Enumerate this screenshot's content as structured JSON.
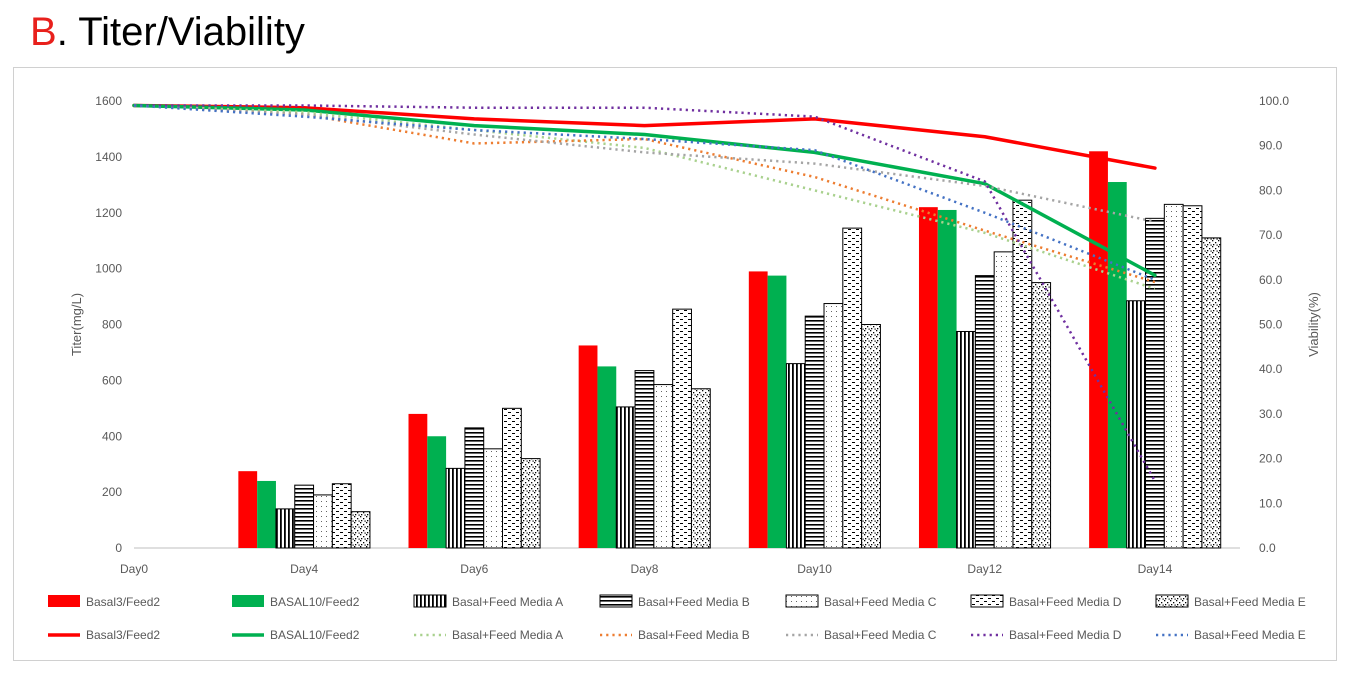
{
  "figure": {
    "letter": "B",
    "title": ". Titer/Viability"
  },
  "chart_data": {
    "type": "bar",
    "title": "",
    "categories": [
      "Day0",
      "Day4",
      "Day6",
      "Day8",
      "Day10",
      "Day12",
      "Day14"
    ],
    "ylabel": "Titer(mg/L)",
    "y2label": "Viability(%)",
    "ylim": [
      0,
      1600
    ],
    "y2lim": [
      0,
      100
    ],
    "yticks": [
      "0",
      "200",
      "400",
      "600",
      "800",
      "1000",
      "1200",
      "1400",
      "1600"
    ],
    "y2ticks": [
      "0.0",
      "10.0",
      "20.0",
      "30.0",
      "40.0",
      "50.0",
      "60.0",
      "70.0",
      "80.0",
      "90.0",
      "100.0"
    ],
    "grid": false,
    "legend_position": "bottom",
    "bar_series": [
      {
        "name": "Basal3/Feed2",
        "color": "#ff0000",
        "pattern": "solid",
        "values": [
          null,
          275,
          480,
          725,
          990,
          1220,
          1420
        ]
      },
      {
        "name": "BASAL10/Feed2",
        "color": "#00b050",
        "pattern": "solid",
        "values": [
          null,
          240,
          400,
          650,
          975,
          1210,
          1310
        ]
      },
      {
        "name": "Basal+Feed Media A",
        "color": "#000000",
        "pattern": "vertical-stripes",
        "values": [
          null,
          140,
          285,
          505,
          660,
          775,
          885
        ]
      },
      {
        "name": "Basal+Feed Media B",
        "color": "#000000",
        "pattern": "horizontal-stripes",
        "values": [
          null,
          225,
          430,
          635,
          830,
          975,
          1180
        ]
      },
      {
        "name": "Basal+Feed Media C",
        "color": "#000000",
        "pattern": "dots",
        "values": [
          null,
          190,
          355,
          585,
          875,
          1060,
          1230
        ]
      },
      {
        "name": "Basal+Feed Media D",
        "color": "#000000",
        "pattern": "dashes",
        "values": [
          null,
          230,
          500,
          855,
          1145,
          1245,
          1225
        ]
      },
      {
        "name": "Basal+Feed Media E",
        "color": "#000000",
        "pattern": "confetti",
        "values": [
          null,
          130,
          320,
          570,
          800,
          950,
          1110
        ]
      }
    ],
    "line_series": [
      {
        "name": "Basal3/Feed2",
        "color": "#ff0000",
        "style": "solid",
        "values": [
          99.0,
          98.5,
          96.0,
          94.5,
          96.0,
          92.0,
          85.0
        ]
      },
      {
        "name": "BASAL10/Feed2",
        "color": "#00b050",
        "style": "solid",
        "values": [
          99.0,
          98.0,
          94.5,
          92.5,
          88.5,
          81.5,
          61.0
        ]
      },
      {
        "name": "Basal+Feed Media A",
        "color": "#a9d18e",
        "style": "dotted",
        "values": [
          99.0,
          97.5,
          93.5,
          89.5,
          80.0,
          70.5,
          58.0
        ]
      },
      {
        "name": "Basal+Feed Media B",
        "color": "#ed7d31",
        "style": "dotted",
        "values": [
          99.0,
          97.0,
          90.5,
          91.5,
          83.0,
          71.0,
          59.5
        ]
      },
      {
        "name": "Basal+Feed Media C",
        "color": "#a5a5a5",
        "style": "dotted",
        "values": [
          99.0,
          97.0,
          92.5,
          88.5,
          86.0,
          81.0,
          73.0
        ]
      },
      {
        "name": "Basal+Feed Media D",
        "color": "#7030a0",
        "style": "dotted",
        "values": [
          99.0,
          99.0,
          98.5,
          98.5,
          96.5,
          82.0,
          15.0
        ]
      },
      {
        "name": "Basal+Feed Media E",
        "color": "#4472c4",
        "style": "dotted",
        "values": [
          99.0,
          96.5,
          93.5,
          91.5,
          89.0,
          75.0,
          60.0
        ]
      }
    ]
  }
}
